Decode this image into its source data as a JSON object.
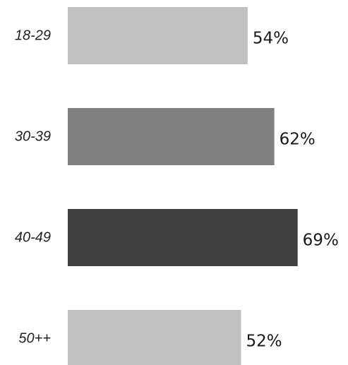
{
  "chart_data": {
    "type": "bar",
    "orientation": "horizontal",
    "categories": [
      "18-29",
      "30-39",
      "40-49",
      "50++"
    ],
    "values": [
      54,
      62,
      69,
      52
    ],
    "value_labels": [
      "54%",
      "62%",
      "69%",
      "52%"
    ],
    "bar_colors": [
      "#c0c0c0",
      "#808080",
      "#404040",
      "#c0c0c0"
    ],
    "xlim": [
      0,
      100
    ],
    "title": "",
    "xlabel": "",
    "ylabel": "",
    "grid": false,
    "legend": "none"
  }
}
